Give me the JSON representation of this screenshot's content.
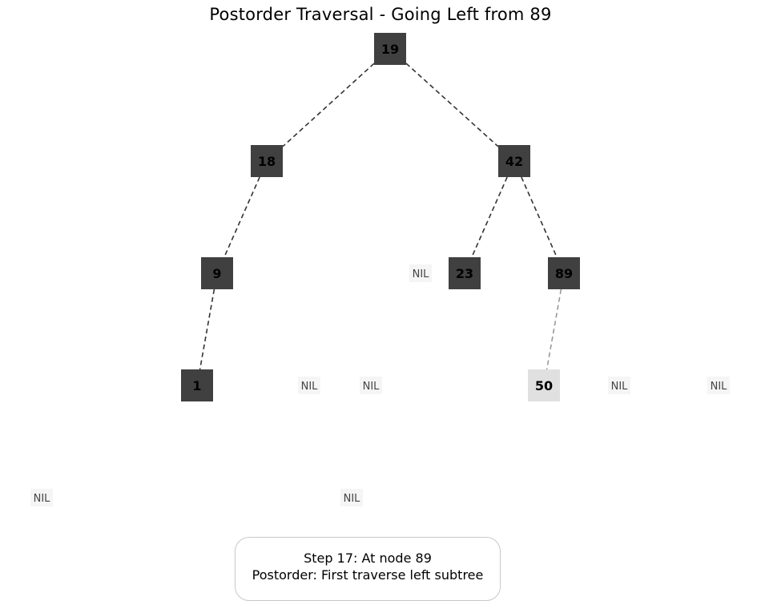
{
  "title": "Postorder Traversal - Going Left from 89",
  "status": {
    "line1": "Step 17: At node 89",
    "line2": "Postorder: First traverse left subtree"
  },
  "colors": {
    "visited_node": "#404040",
    "current_node": "#e0e0e0",
    "edge": "#333333",
    "active_edge": "#999999",
    "nil_background": "#f5f5f5"
  },
  "tree": {
    "nodes": [
      {
        "id": "n19",
        "label": "19",
        "state": "visited"
      },
      {
        "id": "n18",
        "label": "18",
        "state": "visited"
      },
      {
        "id": "n42",
        "label": "42",
        "state": "visited"
      },
      {
        "id": "n9",
        "label": "9",
        "state": "visited"
      },
      {
        "id": "n23",
        "label": "23",
        "state": "visited"
      },
      {
        "id": "n89",
        "label": "89",
        "state": "visited"
      },
      {
        "id": "n1",
        "label": "1",
        "state": "visited"
      },
      {
        "id": "n50",
        "label": "50",
        "state": "current"
      }
    ],
    "edges": [
      {
        "from": "n19",
        "to": "n18",
        "state": "normal"
      },
      {
        "from": "n19",
        "to": "n42",
        "state": "normal"
      },
      {
        "from": "n18",
        "to": "n9",
        "state": "normal"
      },
      {
        "from": "n42",
        "to": "n23",
        "state": "normal"
      },
      {
        "from": "n42",
        "to": "n89",
        "state": "normal"
      },
      {
        "from": "n9",
        "to": "n1",
        "state": "normal"
      },
      {
        "from": "n89",
        "to": "n50",
        "state": "active"
      }
    ],
    "nil_label": "NIL",
    "nil_count": 7
  }
}
